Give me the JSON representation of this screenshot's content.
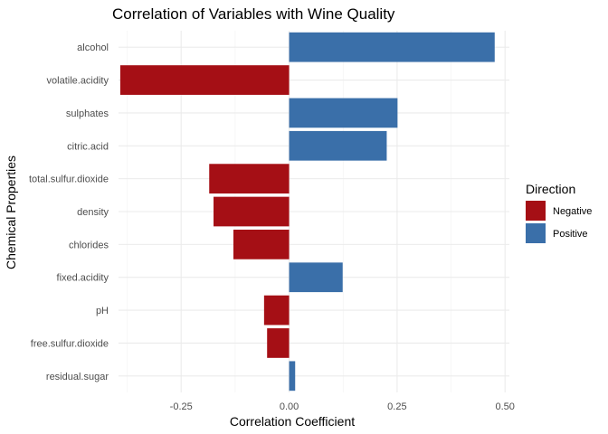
{
  "chart_data": {
    "type": "bar",
    "orientation": "horizontal",
    "title": "Correlation of Variables with Wine Quality",
    "xlabel": "Correlation Coefficient",
    "ylabel": "Chemical Properties",
    "xlim": [
      -0.395,
      0.51
    ],
    "x_ticks": [
      -0.25,
      0,
      0.25,
      0.5
    ],
    "x_tick_labels": [
      "-0.25",
      "0.00",
      "0.25",
      "0.50"
    ],
    "grid": true,
    "legend": {
      "title": "Direction",
      "placement": "right",
      "entries": [
        {
          "label": "Negative",
          "color": "#A50F15"
        },
        {
          "label": "Positive",
          "color": "#3A6FA9"
        }
      ]
    },
    "categories": [
      "alcohol",
      "volatile.acidity",
      "sulphates",
      "citric.acid",
      "total.sulfur.dioxide",
      "density",
      "chlorides",
      "fixed.acidity",
      "pH",
      "free.sulfur.dioxide",
      "residual.sugar"
    ],
    "values": [
      0.476,
      -0.391,
      0.251,
      0.226,
      -0.185,
      -0.175,
      -0.129,
      0.124,
      -0.058,
      -0.051,
      0.014
    ]
  }
}
